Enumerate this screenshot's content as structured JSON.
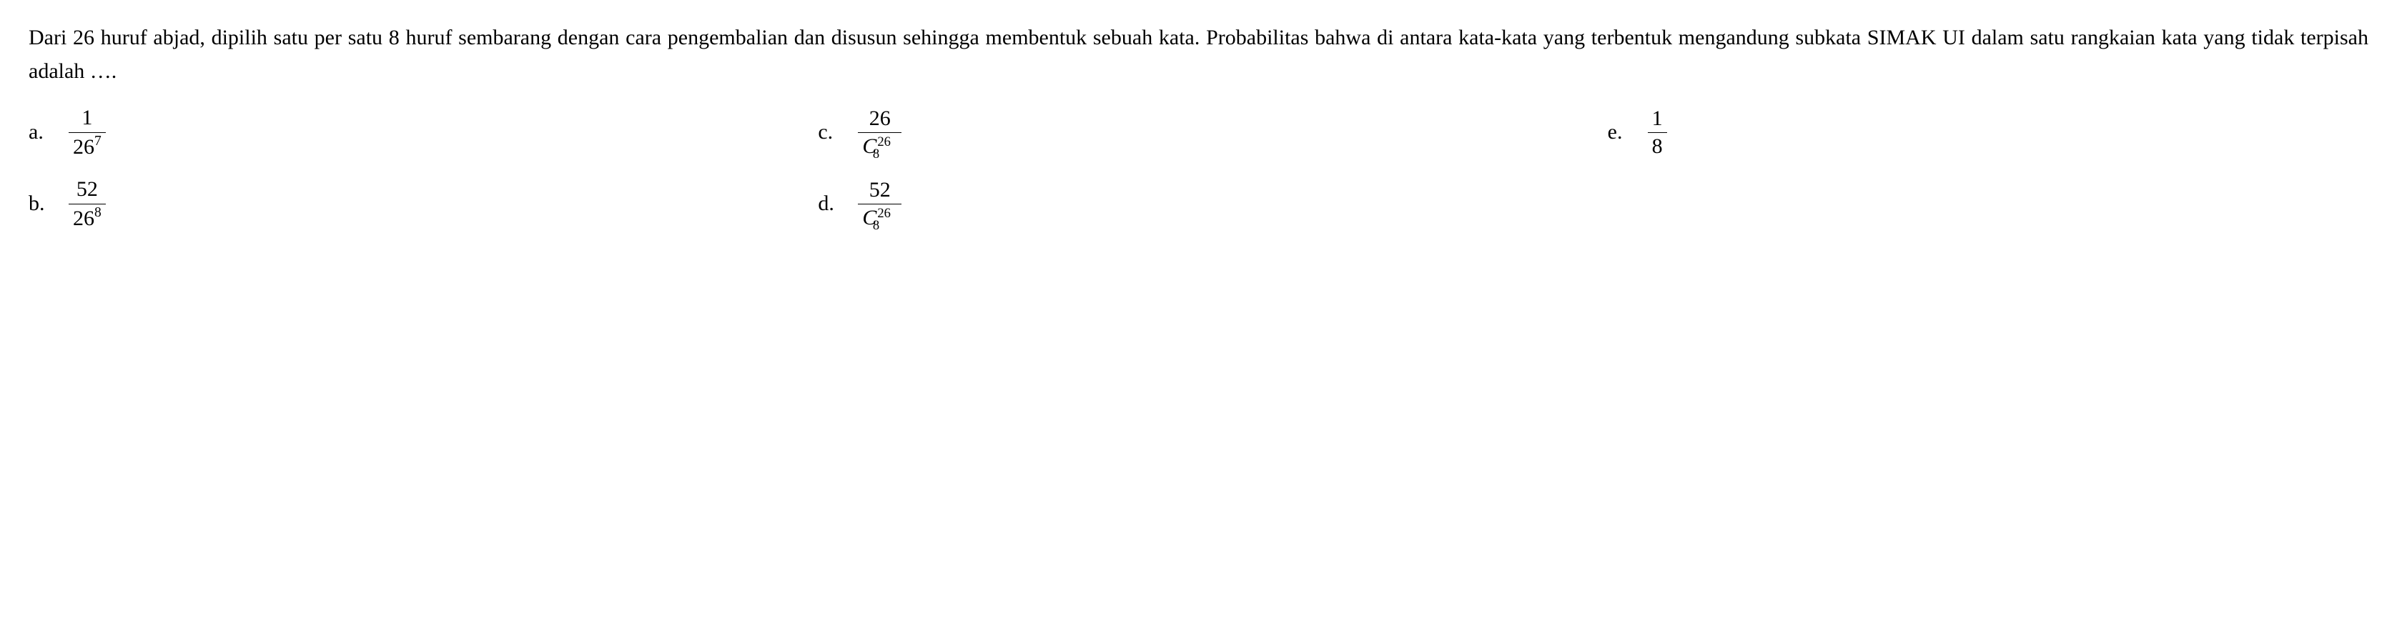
{
  "question": "Dari 26 huruf abjad, dipilih satu per satu 8 huruf sembarang dengan cara pengembalian dan disusun sehingga membentuk sebuah kata. Probabilitas bahwa di antara kata-kata yang terbentuk mengandung subkata SIMAK UI dalam satu rangkaian kata yang tidak terpisah adalah ….",
  "options": {
    "a": {
      "label": "a.",
      "num": "1",
      "den_base": "26",
      "den_sup": "7"
    },
    "b": {
      "label": "b.",
      "num": "52",
      "den_base": "26",
      "den_sup": "8"
    },
    "c": {
      "label": "c.",
      "num": "26",
      "comb_sup": "26",
      "comb_sub": "8"
    },
    "d": {
      "label": "d.",
      "num": "52",
      "comb_sup": "26",
      "comb_sub": "8"
    },
    "e": {
      "label": "e.",
      "num": "1",
      "den": "8"
    }
  }
}
